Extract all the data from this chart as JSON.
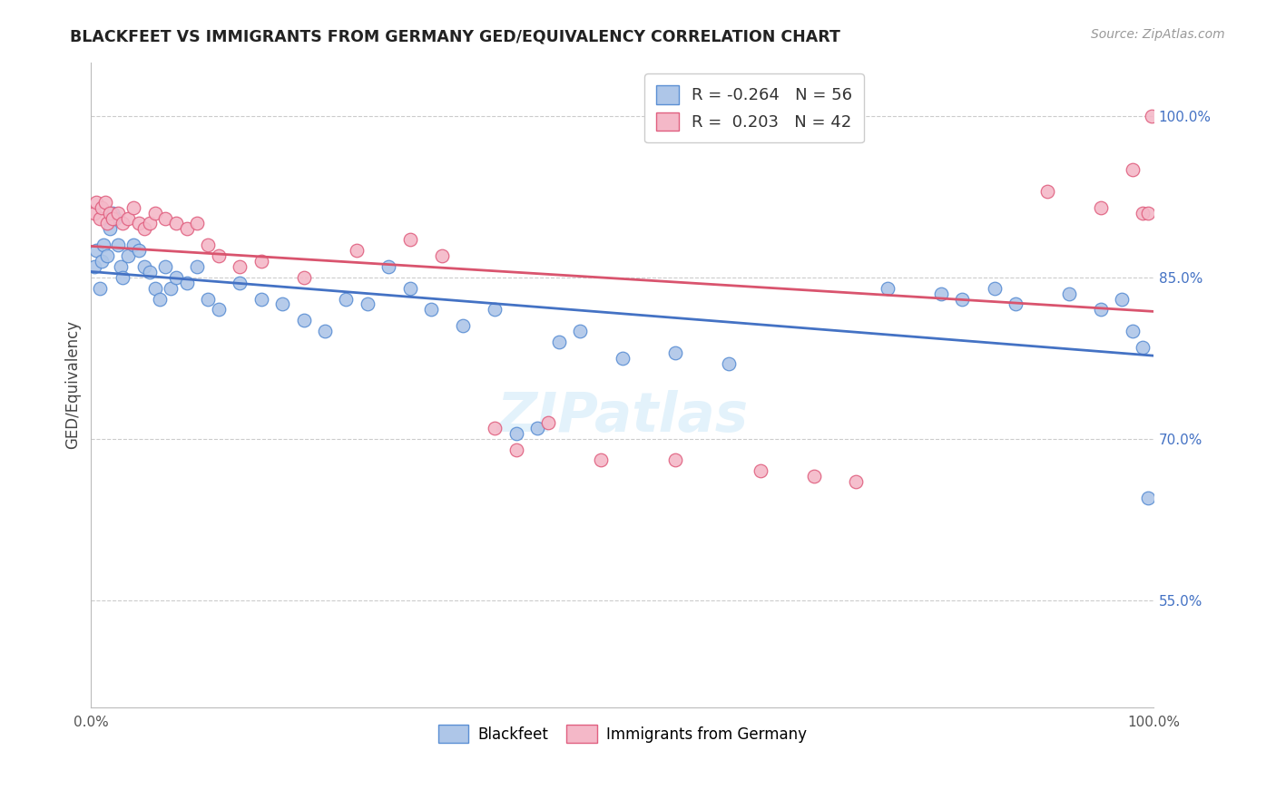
{
  "title": "BLACKFEET VS IMMIGRANTS FROM GERMANY GED/EQUIVALENCY CORRELATION CHART",
  "source": "Source: ZipAtlas.com",
  "ylabel": "GED/Equivalency",
  "right_yticks": [
    55.0,
    70.0,
    85.0,
    100.0
  ],
  "ylim_min": 45.0,
  "ylim_max": 105.0,
  "xlim_min": 0.0,
  "xlim_max": 100.0,
  "blue_R": "-0.264",
  "blue_N": "56",
  "pink_R": "0.203",
  "pink_N": "42",
  "blue_color": "#aec6e8",
  "pink_color": "#f4b8c8",
  "blue_edge_color": "#5b8fd4",
  "pink_edge_color": "#e06080",
  "blue_line_color": "#4472c4",
  "pink_line_color": "#d9546e",
  "blue_label": "Blackfeet",
  "pink_label": "Immigrants from Germany",
  "watermark": "ZIPatlas",
  "legend_R_blue_color": "#d44",
  "legend_R_pink_color": "#d44",
  "blue_points_x": [
    0.3,
    0.5,
    0.8,
    1.0,
    1.2,
    1.5,
    1.8,
    2.0,
    2.3,
    2.5,
    2.8,
    3.0,
    3.5,
    4.0,
    4.5,
    5.0,
    5.5,
    6.0,
    6.5,
    7.0,
    7.5,
    8.0,
    9.0,
    10.0,
    11.0,
    12.0,
    14.0,
    16.0,
    18.0,
    20.0,
    22.0,
    24.0,
    26.0,
    28.0,
    30.0,
    32.0,
    35.0,
    38.0,
    40.0,
    42.0,
    44.0,
    46.0,
    50.0,
    55.0,
    60.0,
    75.0,
    80.0,
    82.0,
    85.0,
    87.0,
    92.0,
    95.0,
    97.0,
    98.0,
    99.0,
    99.5
  ],
  "blue_points_y": [
    86.0,
    87.5,
    84.0,
    86.5,
    88.0,
    87.0,
    89.5,
    91.0,
    90.5,
    88.0,
    86.0,
    85.0,
    87.0,
    88.0,
    87.5,
    86.0,
    85.5,
    84.0,
    83.0,
    86.0,
    84.0,
    85.0,
    84.5,
    86.0,
    83.0,
    82.0,
    84.5,
    83.0,
    82.5,
    81.0,
    80.0,
    83.0,
    82.5,
    86.0,
    84.0,
    82.0,
    80.5,
    82.0,
    70.5,
    71.0,
    79.0,
    80.0,
    77.5,
    78.0,
    77.0,
    84.0,
    83.5,
    83.0,
    84.0,
    82.5,
    83.5,
    82.0,
    83.0,
    80.0,
    78.5,
    64.5
  ],
  "pink_points_x": [
    0.3,
    0.5,
    0.8,
    1.0,
    1.3,
    1.5,
    1.8,
    2.0,
    2.5,
    3.0,
    3.5,
    4.0,
    4.5,
    5.0,
    5.5,
    6.0,
    7.0,
    8.0,
    9.0,
    10.0,
    11.0,
    12.0,
    14.0,
    16.0,
    20.0,
    25.0,
    30.0,
    33.0,
    38.0,
    40.0,
    43.0,
    48.0,
    55.0,
    63.0,
    68.0,
    72.0,
    90.0,
    95.0,
    98.0,
    99.0,
    99.5,
    99.8
  ],
  "pink_points_y": [
    91.0,
    92.0,
    90.5,
    91.5,
    92.0,
    90.0,
    91.0,
    90.5,
    91.0,
    90.0,
    90.5,
    91.5,
    90.0,
    89.5,
    90.0,
    91.0,
    90.5,
    90.0,
    89.5,
    90.0,
    88.0,
    87.0,
    86.0,
    86.5,
    85.0,
    87.5,
    88.5,
    87.0,
    71.0,
    69.0,
    71.5,
    68.0,
    68.0,
    67.0,
    66.5,
    66.0,
    93.0,
    91.5,
    95.0,
    91.0,
    91.0,
    100.0
  ]
}
